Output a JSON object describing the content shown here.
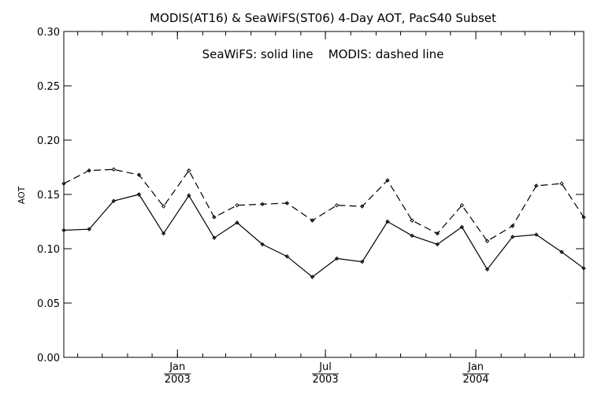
{
  "chart_data": {
    "type": "line",
    "title": "MODIS(AT16) & SeaWiFS(ST06) 4-Day AOT, PacS40 Subset",
    "annotation": "SeaWiFS: solid line    MODIS: dashed line",
    "xlabel": "",
    "ylabel": "AOT",
    "ylim": [
      0.0,
      0.3
    ],
    "yticks": [
      "0.00",
      "0.05",
      "0.10",
      "0.15",
      "0.20",
      "0.25",
      "0.30"
    ],
    "xlim": [
      "2002-08-15",
      "2004-05-12"
    ],
    "xticks": [
      {
        "date": "2003-01-01",
        "month": "Jan",
        "year": "2003"
      },
      {
        "date": "2003-07-01",
        "month": "Jul",
        "year": "2003"
      },
      {
        "date": "2004-01-01",
        "month": "Jan",
        "year": "2004"
      }
    ],
    "grid": false,
    "series": [
      {
        "name": "SeaWiFS",
        "style": "solid",
        "color": "#000000",
        "points": [
          [
            "2002-08-15",
            0.117
          ],
          [
            "2002-09-15",
            0.118
          ],
          [
            "2002-10-15",
            0.144
          ],
          [
            "2002-11-15",
            0.15
          ],
          [
            "2002-12-15",
            0.114
          ],
          [
            "2003-01-15",
            0.149
          ],
          [
            "2003-02-15",
            0.11
          ],
          [
            "2003-03-15",
            0.124
          ],
          [
            "2003-04-15",
            0.104
          ],
          [
            "2003-05-15",
            0.093
          ],
          [
            "2003-06-15",
            0.074
          ],
          [
            "2003-07-15",
            0.091
          ],
          [
            "2003-08-15",
            0.088
          ],
          [
            "2003-09-15",
            0.125
          ],
          [
            "2003-10-15",
            0.112
          ],
          [
            "2003-11-15",
            0.104
          ],
          [
            "2003-12-15",
            0.12
          ],
          [
            "2004-01-15",
            0.081
          ],
          [
            "2004-02-15",
            0.111
          ],
          [
            "2004-03-15",
            0.113
          ],
          [
            "2004-04-15",
            0.097
          ],
          [
            "2004-05-12",
            0.082
          ]
        ]
      },
      {
        "name": "MODIS",
        "style": "dashed",
        "color": "#000000",
        "points": [
          [
            "2002-08-15",
            0.16
          ],
          [
            "2002-09-15",
            0.172
          ],
          [
            "2002-10-15",
            0.173
          ],
          [
            "2002-11-15",
            0.168
          ],
          [
            "2002-12-15",
            0.139
          ],
          [
            "2003-01-15",
            0.172
          ],
          [
            "2003-02-15",
            0.129
          ],
          [
            "2003-03-15",
            0.14
          ],
          [
            "2003-04-15",
            0.141
          ],
          [
            "2003-05-15",
            0.142
          ],
          [
            "2003-06-15",
            0.126
          ],
          [
            "2003-07-15",
            0.14
          ],
          [
            "2003-08-15",
            0.139
          ],
          [
            "2003-09-15",
            0.163
          ],
          [
            "2003-10-15",
            0.126
          ],
          [
            "2003-11-15",
            0.114
          ],
          [
            "2003-12-15",
            0.14
          ],
          [
            "2004-01-15",
            0.107
          ],
          [
            "2004-02-15",
            0.121
          ],
          [
            "2004-03-15",
            0.158
          ],
          [
            "2004-04-15",
            0.16
          ],
          [
            "2004-05-12",
            0.129
          ]
        ]
      }
    ]
  }
}
